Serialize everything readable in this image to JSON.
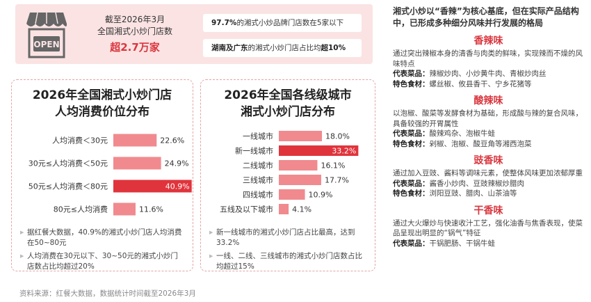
{
  "header": {
    "store_sign": "OPEN",
    "stat_line1": "截至2026年3月",
    "stat_line2": "全国湘式小炒门店数",
    "stat_big": "超2.7万家",
    "pill1_bold": "97.7%",
    "pill1_text": "的湘式小炒品牌门店数在5家以下",
    "pill2_bold1": "湖南及广东",
    "pill2_text": "的湘式小炒门店占比均",
    "pill2_bold2": "超10%"
  },
  "left_panel": {
    "title_line1": "2026年全国湘式小炒门店",
    "title_line2": "人均消费价位分布",
    "notes": [
      "据红餐大数据，40.9%的湘式小炒门店人均消费在50~80元",
      "人均消费在30元以下、30~50元的湘式小炒门店数占比均超过20%"
    ]
  },
  "mid_panel": {
    "title_line1": "2026年全国各线级城市",
    "title_line2": "湘式小炒门店分布",
    "notes": [
      "新一线城市的湘式小炒门店占比最高，达到33.2%",
      "一线、二线、三线城市的湘式小炒门店数占比均超过15%"
    ]
  },
  "chart_data": [
    {
      "type": "bar",
      "orientation": "horizontal",
      "title": "2026年全国湘式小炒门店人均消费价位分布",
      "categories": [
        "人均消费＜30元",
        "30元≤人均消费＜50元",
        "50元≤人均消费＜80元",
        "80元≤人均消费"
      ],
      "values": [
        22.6,
        24.9,
        40.9,
        11.6
      ],
      "labels": [
        "22.6%",
        "24.9%",
        "40.9%",
        "11.6%"
      ],
      "highlight_index": 2,
      "xlim": [
        0,
        45
      ]
    },
    {
      "type": "bar",
      "orientation": "horizontal",
      "title": "2026年全国各线级城市湘式小炒门店分布",
      "categories": [
        "一线城市",
        "新一线城市",
        "二线城市",
        "三线城市",
        "四线城市",
        "五线及以下城市"
      ],
      "values": [
        18.0,
        33.2,
        16.1,
        17.7,
        10.9,
        4.1
      ],
      "labels": [
        "18.0%",
        "33.2%",
        "16.1%",
        "17.7%",
        "10.9%",
        "4.1%"
      ],
      "highlight_index": 1,
      "xlim": [
        0,
        36
      ]
    }
  ],
  "right_panel": {
    "intro": "湘式小炒以“香辣”为核心基底，但在实际产品结构中，已形成多种细分风味并行发展的格局",
    "flavors": [
      {
        "name": "香辣味",
        "desc": "通过突出辣椒本身的清香与肉类的鲜味，实现辣而不燥的风味特点",
        "dish_label": "代表菜品：",
        "dishes": "辣椒炒肉、小炒黄牛肉、青椒炒肉丝",
        "ingr_label": "特色食材：",
        "ingredients": "螺丝椒、攸县香干、宁乡花猪等"
      },
      {
        "name": "酸辣味",
        "desc": "以泡椒、酸菜等发酵食材为基础，形成酸与辣的复合风味，具备较强的开胃属性",
        "dish_label": "代表菜品：",
        "dishes": "酸辣鸡杂、泡椒牛蛙",
        "ingr_label": "特色食材：",
        "ingredients": "剁椒、泡椒、酸豆角等湘西泡菜"
      },
      {
        "name": "豉香味",
        "desc": "通过加入豆豉、酱料等调味元素，使整体风味更加浓郁厚重",
        "dish_label": "代表菜品：",
        "dishes": "酱香小炒肉、豆豉辣椒炒腊肉",
        "ingr_label": "特色食材：",
        "ingredients": "浏阳豆豉、腊肉、山茶油等"
      },
      {
        "name": "干香味",
        "desc": "通过大火爆炒与快速收汁工艺，强化油香与焦香表现，使菜品呈现出明显的“锅气”特征",
        "dish_label": "代表菜品：",
        "dishes": "干锅肥肠、干锅牛蛙"
      }
    ]
  },
  "footer": {
    "source": "资料来源：红餐大数据，数据统计时间截至2026年3月"
  },
  "colors": {
    "accent": "#d9363e",
    "bar_light": "#f08a8e",
    "bar_dark": "#e0343c",
    "card_bg": "#fbe3e3"
  }
}
